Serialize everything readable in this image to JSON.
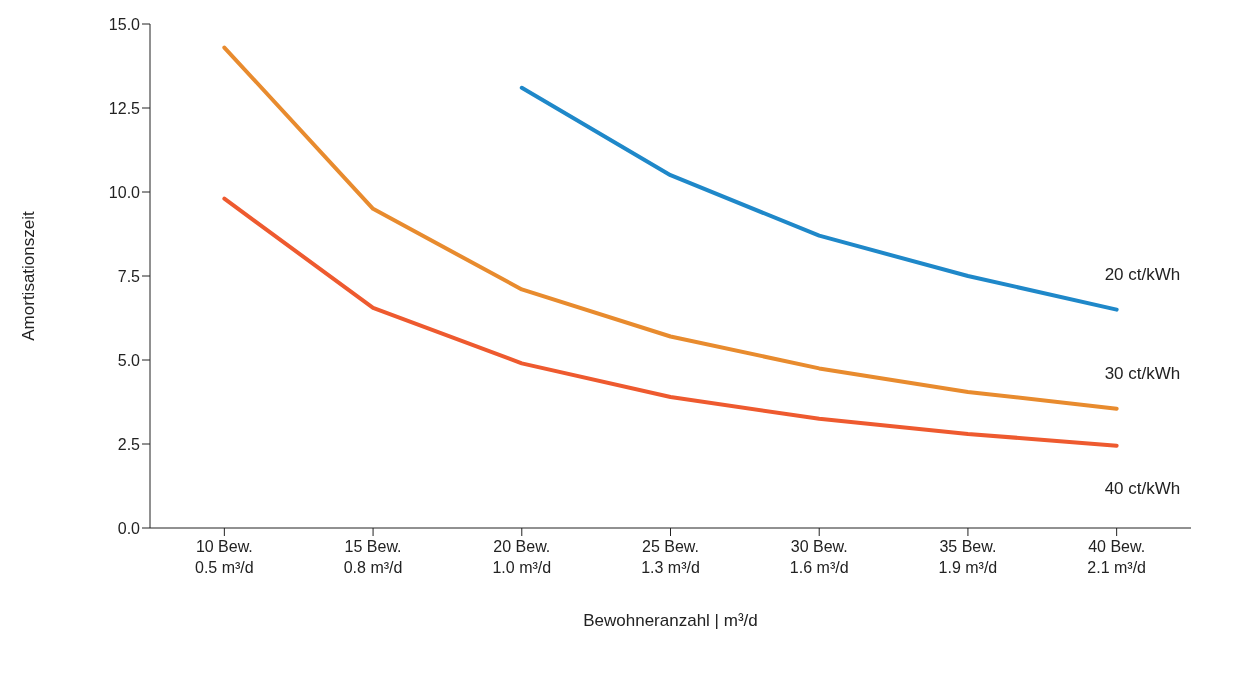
{
  "chart_data": {
    "type": "line",
    "xlabel": "Bewohneranzahl | m³/d",
    "ylabel": "Amortisationszeit",
    "categories": [
      "10 Bew.\n0.5 m³/d",
      "15 Bew.\n0.8 m³/d",
      "20 Bew.\n1.0 m³/d",
      "25 Bew.\n1.3 m³/d",
      "30 Bew.\n1.6 m³/d",
      "35 Bew.\n1.9 m³/d",
      "40 Bew.\n2.1 m³/d"
    ],
    "series": [
      {
        "name": "20 ct/kWh",
        "color": "#1f88c9",
        "values": [
          null,
          null,
          13.1,
          10.5,
          8.7,
          7.5,
          6.5
        ]
      },
      {
        "name": "30 ct/kWh",
        "color": "#e88b2e",
        "values": [
          14.3,
          9.5,
          7.1,
          5.7,
          4.75,
          4.05,
          3.55
        ]
      },
      {
        "name": "40 ct/kWh",
        "color": "#ee5a2f",
        "values": [
          9.8,
          6.55,
          4.9,
          3.9,
          3.25,
          2.8,
          2.45
        ]
      }
    ],
    "ylim": [
      0,
      15
    ],
    "yticks": [
      {
        "value": 0,
        "label": "0.0"
      },
      2.5,
      {
        "value": 5,
        "label": "5.0"
      },
      7.5,
      {
        "value": 10,
        "label": "10.0"
      },
      12.5,
      {
        "value": 15,
        "label": "15.0"
      }
    ],
    "grid": false,
    "legend": false,
    "marker": "none",
    "line_style": "solid"
  }
}
